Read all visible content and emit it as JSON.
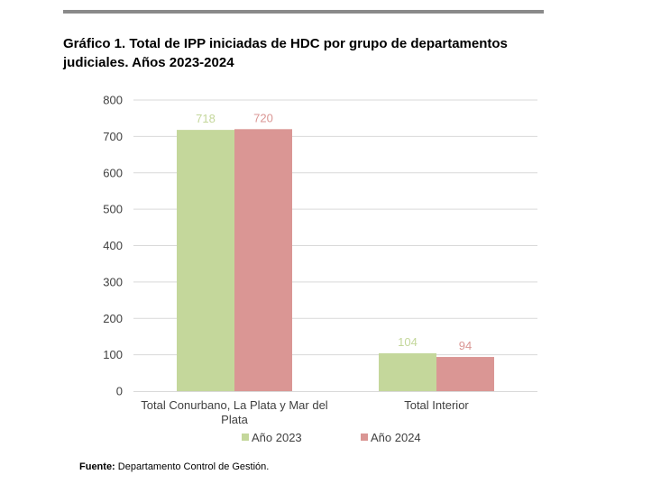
{
  "title_line1": "Gráfico 1. Total de IPP iniciadas de HDC por grupo de departamentos",
  "title_line2": "judiciales. Años 2023-2024",
  "source": {
    "label": "Fuente:",
    "text": "Departamento Control de Gestión."
  },
  "chart_data": {
    "type": "bar",
    "title": "Gráfico 1. Total de IPP iniciadas de HDC por grupo de departamentos judiciales. Años 2023-2024",
    "categories": [
      [
        "Total Conurbano, La Plata y Mar del",
        "Plata"
      ],
      [
        "Total Interior"
      ]
    ],
    "series": [
      {
        "name": "Año 2023",
        "values": [
          718,
          104
        ],
        "color": "#c4d79b"
      },
      {
        "name": "Año 2024",
        "values": [
          720,
          94
        ],
        "color": "#da9694"
      }
    ],
    "ylim": [
      0,
      800
    ],
    "yticks": [
      0,
      100,
      200,
      300,
      400,
      500,
      600,
      700,
      800
    ],
    "grid": true,
    "legend": "bottom",
    "data_labels": true
  }
}
